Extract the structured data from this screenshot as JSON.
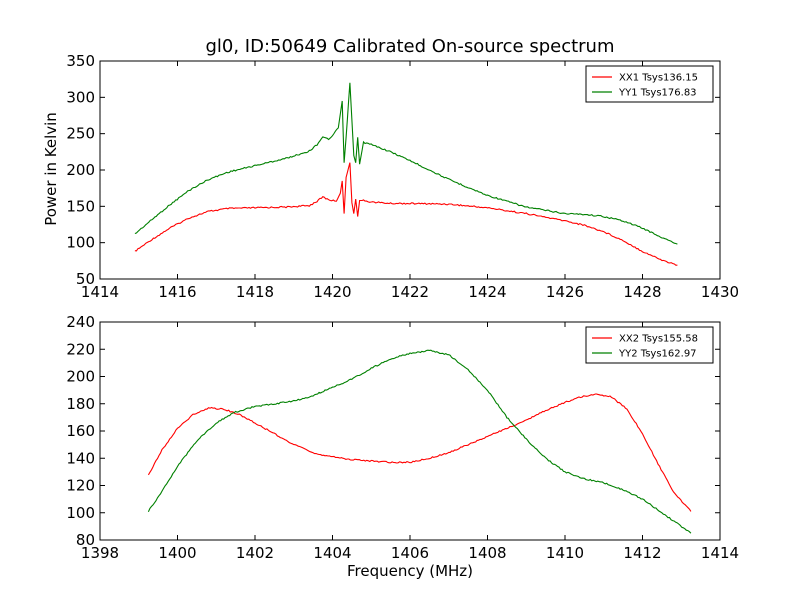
{
  "chart_data": [
    {
      "type": "line",
      "title": "gl0, ID:50649 Calibrated On-source spectrum",
      "xlabel": "",
      "ylabel": "Power in Kelvin",
      "xlim": [
        1414,
        1430
      ],
      "ylim": [
        50,
        350
      ],
      "xticks": [
        1414,
        1416,
        1418,
        1420,
        1422,
        1424,
        1426,
        1428,
        1430
      ],
      "yticks": [
        50,
        100,
        150,
        200,
        250,
        300,
        350
      ],
      "grid": false,
      "legend": "top-right",
      "series": [
        {
          "name": "XX1 Tsys136.15",
          "color": "#ff0000",
          "x": [
            1414.9,
            1415.3,
            1415.8,
            1416.3,
            1416.8,
            1417.3,
            1418.0,
            1418.8,
            1419.4,
            1419.6,
            1419.75,
            1419.9,
            1420.1,
            1420.2,
            1420.25,
            1420.3,
            1420.35,
            1420.45,
            1420.5,
            1420.55,
            1420.6,
            1420.65,
            1420.7,
            1420.8,
            1421.0,
            1421.5,
            1422.0,
            1423.0,
            1424.0,
            1425.0,
            1426.0,
            1426.5,
            1427.0,
            1427.5,
            1428.0,
            1428.5,
            1428.9
          ],
          "values": [
            88,
            103,
            120,
            134,
            143,
            147,
            148,
            149,
            151,
            157,
            163,
            159,
            157,
            168,
            185,
            140,
            190,
            210,
            155,
            140,
            160,
            136,
            158,
            158,
            156,
            154,
            154,
            153,
            148,
            140,
            130,
            124,
            115,
            103,
            88,
            76,
            69
          ]
        },
        {
          "name": "YY1 Tsys176.83",
          "color": "#008000",
          "x": [
            1414.9,
            1415.3,
            1415.8,
            1416.3,
            1416.8,
            1417.3,
            1418.0,
            1418.8,
            1419.4,
            1419.6,
            1419.75,
            1419.9,
            1420.0,
            1420.15,
            1420.25,
            1420.3,
            1420.35,
            1420.45,
            1420.55,
            1420.6,
            1420.65,
            1420.7,
            1420.8,
            1421.0,
            1421.5,
            1422.0,
            1422.5,
            1423.0,
            1424.0,
            1425.0,
            1426.0,
            1426.5,
            1427.0,
            1427.5,
            1428.0,
            1428.5,
            1428.9
          ],
          "values": [
            112,
            130,
            152,
            172,
            187,
            197,
            206,
            216,
            226,
            235,
            246,
            242,
            247,
            258,
            295,
            210,
            245,
            320,
            220,
            210,
            245,
            208,
            238,
            235,
            225,
            213,
            200,
            187,
            165,
            149,
            140,
            139,
            136,
            130,
            120,
            107,
            98
          ]
        }
      ]
    },
    {
      "type": "line",
      "title": "",
      "xlabel": "Frequency (MHz)",
      "ylabel": "",
      "xlim": [
        1398,
        1414
      ],
      "ylim": [
        80,
        240
      ],
      "xticks": [
        1398,
        1400,
        1402,
        1404,
        1406,
        1408,
        1410,
        1412,
        1414
      ],
      "yticks": [
        80,
        100,
        120,
        140,
        160,
        180,
        200,
        220,
        240
      ],
      "grid": false,
      "legend": "top-right",
      "series": [
        {
          "name": "XX2 Tsys155.58",
          "color": "#ff0000",
          "x": [
            1399.25,
            1399.6,
            1400.0,
            1400.4,
            1400.8,
            1401.2,
            1401.6,
            1402.0,
            1402.5,
            1403.0,
            1403.5,
            1404.0,
            1404.5,
            1405.0,
            1405.5,
            1406.0,
            1406.5,
            1407.0,
            1407.5,
            1408.0,
            1408.5,
            1409.0,
            1409.5,
            1410.0,
            1410.4,
            1410.8,
            1411.2,
            1411.6,
            1412.0,
            1412.4,
            1412.8,
            1413.25
          ],
          "values": [
            128,
            146,
            162,
            172,
            177,
            176,
            172,
            166,
            158,
            150,
            144,
            141,
            139,
            138,
            137,
            137,
            140,
            144,
            150,
            156,
            162,
            168,
            175,
            181,
            185,
            187,
            185,
            176,
            158,
            136,
            115,
            101
          ]
        },
        {
          "name": "YY2 Tsys162.97",
          "color": "#008000",
          "x": [
            1399.25,
            1399.6,
            1400.0,
            1400.5,
            1401.0,
            1401.5,
            1402.0,
            1402.5,
            1403.0,
            1403.5,
            1404.0,
            1404.5,
            1405.0,
            1405.5,
            1406.0,
            1406.5,
            1407.0,
            1407.5,
            1408.0,
            1408.5,
            1409.0,
            1409.5,
            1410.0,
            1410.5,
            1411.0,
            1411.5,
            1412.0,
            1412.5,
            1413.25
          ],
          "values": [
            101,
            116,
            134,
            153,
            166,
            174,
            178,
            180,
            182,
            186,
            192,
            198,
            206,
            213,
            217,
            219,
            216,
            205,
            190,
            170,
            154,
            140,
            130,
            125,
            122,
            117,
            110,
            100,
            85
          ]
        }
      ]
    }
  ]
}
